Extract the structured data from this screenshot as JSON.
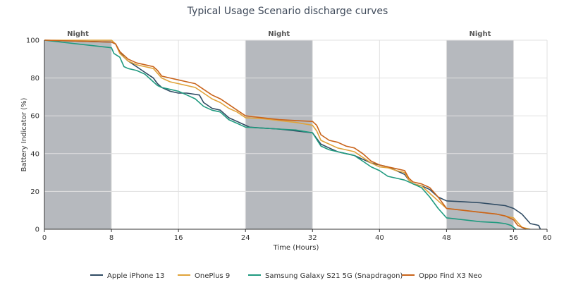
{
  "chart_data": {
    "type": "line",
    "title": "Typical Usage Scenario discharge curves",
    "xlabel": "Time (Hours)",
    "ylabel": "Battery Indicator (%)",
    "xlim": [
      0,
      60
    ],
    "ylim": [
      0,
      100
    ],
    "x_ticks": [
      0,
      8,
      16,
      24,
      32,
      40,
      48,
      56,
      60
    ],
    "y_ticks": [
      0,
      20,
      40,
      60,
      80,
      100
    ],
    "grid": true,
    "legend_position": "bottom",
    "night_bands": [
      {
        "label": "Night",
        "start": 0,
        "end": 8
      },
      {
        "label": "Night",
        "start": 24,
        "end": 32
      },
      {
        "label": "Night",
        "start": 48,
        "end": 56
      }
    ],
    "band_color": "#a9adb3",
    "series": [
      {
        "name": "Apple iPhone 13",
        "color": "#2f4b63",
        "x": [
          0,
          8,
          8.5,
          9,
          9.5,
          10,
          11,
          12,
          13,
          13.5,
          14,
          15,
          16,
          17,
          18.5,
          19,
          20,
          21,
          22,
          23,
          24,
          24.5,
          26,
          28,
          30,
          32,
          33,
          34,
          35,
          36,
          37,
          38,
          39,
          40,
          41,
          42,
          43,
          43.5,
          44,
          45,
          46,
          47,
          48,
          50,
          52,
          54,
          55,
          56,
          57,
          58,
          59,
          59.2
        ],
        "y": [
          100,
          99,
          98,
          94,
          91,
          89,
          86,
          83,
          80,
          77,
          75,
          73,
          72,
          72,
          71,
          67,
          64,
          63,
          59,
          57,
          55,
          54,
          53.5,
          53,
          52,
          51,
          45,
          43,
          41,
          40,
          39,
          37,
          35,
          34,
          33,
          31,
          29,
          26,
          24,
          23,
          21,
          17,
          15,
          14.5,
          14,
          13,
          12.5,
          11,
          8,
          3,
          2,
          0
        ]
      },
      {
        "name": "OnePlus 9",
        "color": "#e0a33a",
        "x": [
          0,
          8,
          8.5,
          9,
          10,
          11,
          12,
          13,
          14,
          15,
          16,
          18,
          19,
          20,
          21,
          22,
          23,
          24,
          26,
          28,
          30,
          32,
          32.5,
          33,
          34,
          35,
          36,
          37,
          38,
          39,
          40,
          41,
          42,
          43,
          43.5,
          44,
          45,
          46,
          47,
          48,
          50,
          52,
          54,
          55,
          56,
          57,
          58
        ],
        "y": [
          100,
          100,
          98,
          93,
          89,
          87,
          86,
          85,
          80,
          78,
          77,
          75,
          72,
          69,
          67,
          64,
          62,
          59,
          58.5,
          57.5,
          56.5,
          55,
          52,
          47,
          45,
          43,
          42,
          41,
          38,
          35,
          33,
          32.5,
          31,
          30,
          26,
          24,
          23,
          19,
          15,
          11,
          10,
          9,
          8,
          7,
          6,
          1,
          0
        ]
      },
      {
        "name": "Samsung Galaxy S21 5G (Snapdragon)",
        "color": "#1f9a7f",
        "x": [
          0,
          8,
          8.3,
          9,
          9.5,
          10,
          11,
          12,
          13,
          13.5,
          14,
          15,
          16,
          17,
          18,
          19,
          20,
          21,
          22,
          23,
          24,
          26,
          28,
          30,
          32,
          33,
          34,
          35,
          36,
          37,
          38,
          39,
          40,
          41,
          42,
          43,
          44,
          45,
          46,
          47,
          48,
          50,
          52,
          54,
          55,
          55.7,
          56,
          56.3
        ],
        "y": [
          100,
          96,
          93,
          91,
          86,
          85,
          84,
          82,
          78,
          76,
          75,
          74,
          73,
          71,
          69,
          65,
          63,
          62,
          58,
          56,
          54,
          53.5,
          53,
          52.5,
          51,
          44,
          42,
          41,
          40,
          39,
          36,
          33,
          31,
          28,
          27,
          26,
          24,
          22,
          17,
          11,
          6,
          5,
          4,
          3.5,
          3,
          2,
          1,
          0
        ]
      },
      {
        "name": "Oppo Find X3 Neo",
        "color": "#c9631a",
        "x": [
          0,
          8,
          8.5,
          9,
          10,
          11,
          12,
          13,
          13.5,
          14,
          15,
          16,
          17,
          18,
          19,
          20,
          21,
          22,
          23,
          24,
          26,
          28,
          30,
          32,
          32.5,
          33,
          34,
          35,
          36,
          37,
          38,
          39,
          40,
          41,
          42,
          43,
          43.5,
          44,
          45,
          46,
          47,
          48,
          50,
          52,
          54,
          55,
          56,
          56.5,
          57,
          57.5
        ],
        "y": [
          100,
          99,
          98,
          94,
          90,
          88,
          87,
          86,
          84,
          81,
          80,
          79,
          78,
          77,
          74,
          71,
          69,
          66,
          63,
          60,
          59,
          58,
          57.5,
          57,
          55,
          50,
          47,
          46,
          44,
          43,
          40,
          36,
          34,
          33,
          32,
          31,
          27,
          25,
          24,
          22,
          17,
          11,
          10,
          9,
          8,
          7,
          5,
          2,
          1,
          0
        ]
      }
    ]
  }
}
